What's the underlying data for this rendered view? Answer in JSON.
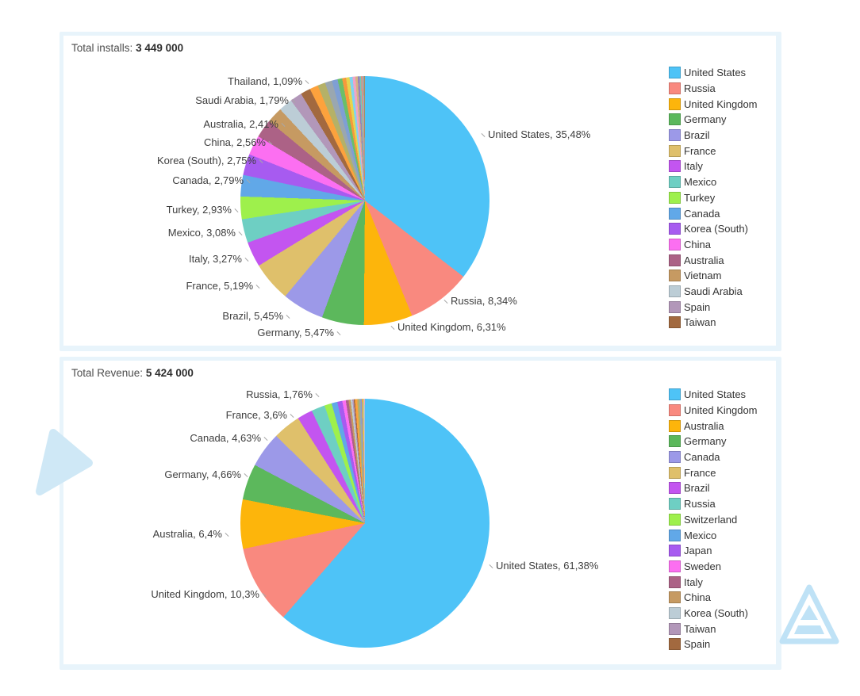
{
  "charts": [
    {
      "title_label": "Total installs:",
      "title_value": "3 449 000",
      "slice_labels": [
        "Thailand, 1,09%",
        "Saudi Arabia, 1,79%",
        "Australia, 2,41%",
        "China, 2,56%",
        "Korea (South), 2,75%",
        "Canada, 2,79%",
        "Turkey, 2,93%",
        "Mexico, 3,08%",
        "Italy, 3,27%",
        "France, 5,19%",
        "Brazil, 5,45%",
        "Germany, 5,47%",
        "United Kingdom, 6,31%",
        "Russia, 8,34%",
        "United States, 35,48%"
      ],
      "legend": [
        {
          "label": "United States",
          "color": "#4ec3f7"
        },
        {
          "label": "Russia",
          "color": "#f9897f"
        },
        {
          "label": "United Kingdom",
          "color": "#fdb50b"
        },
        {
          "label": "Germany",
          "color": "#5cb85c"
        },
        {
          "label": "Brazil",
          "color": "#9c99e8"
        },
        {
          "label": "France",
          "color": "#dfc06b"
        },
        {
          "label": "Italy",
          "color": "#c355f0"
        },
        {
          "label": "Mexico",
          "color": "#6ecfc3"
        },
        {
          "label": "Turkey",
          "color": "#9ef04c"
        },
        {
          "label": "Canada",
          "color": "#61a8e8"
        },
        {
          "label": "Korea (South)",
          "color": "#a75bf0"
        },
        {
          "label": "China",
          "color": "#fc6ff1"
        },
        {
          "label": "Australia",
          "color": "#ac6286"
        },
        {
          "label": "Vietnam",
          "color": "#c69a62"
        },
        {
          "label": "Saudi Arabia",
          "color": "#bccdd6"
        },
        {
          "label": "Spain",
          "color": "#b297b9"
        },
        {
          "label": "Taiwan",
          "color": "#a2693f"
        }
      ]
    },
    {
      "title_label": "Total Revenue:",
      "title_value": "5 424 000",
      "slice_labels": [
        "Russia, 1,76%",
        "France, 3,6%",
        "Canada, 4,63%",
        "Germany, 4,66%",
        "Australia, 6,4%",
        "United Kingdom, 10,3%",
        "United States, 61,38%"
      ],
      "legend": [
        {
          "label": "United States",
          "color": "#4ec3f7"
        },
        {
          "label": "United Kingdom",
          "color": "#f9897f"
        },
        {
          "label": "Australia",
          "color": "#fdb50b"
        },
        {
          "label": "Germany",
          "color": "#5cb85c"
        },
        {
          "label": "Canada",
          "color": "#9c99e8"
        },
        {
          "label": "France",
          "color": "#dfc06b"
        },
        {
          "label": "Brazil",
          "color": "#c355f0"
        },
        {
          "label": "Russia",
          "color": "#6ecfc3"
        },
        {
          "label": "Switzerland",
          "color": "#9ef04c"
        },
        {
          "label": "Mexico",
          "color": "#61a8e8"
        },
        {
          "label": "Japan",
          "color": "#a75bf0"
        },
        {
          "label": "Sweden",
          "color": "#fc6ff1"
        },
        {
          "label": "Italy",
          "color": "#ac6286"
        },
        {
          "label": "China",
          "color": "#c69a62"
        },
        {
          "label": "Korea (South)",
          "color": "#bccdd6"
        },
        {
          "label": "Taiwan",
          "color": "#b297b9"
        },
        {
          "label": "Spain",
          "color": "#a2693f"
        }
      ]
    }
  ],
  "chart_data": [
    {
      "type": "pie",
      "title": "Total installs: 3 449 000",
      "total_label": "Total installs:",
      "total_value": "3 449 000",
      "unit": "percent",
      "legend_position": "right",
      "start_angle_deg": 0,
      "direction": "clockwise",
      "slices": [
        {
          "name": "United States",
          "value": 35.48,
          "color": "#4ec3f7"
        },
        {
          "name": "Russia",
          "value": 8.34,
          "color": "#f9897f"
        },
        {
          "name": "United Kingdom",
          "value": 6.31,
          "color": "#fdb50b"
        },
        {
          "name": "Germany",
          "value": 5.47,
          "color": "#5cb85c"
        },
        {
          "name": "Brazil",
          "value": 5.45,
          "color": "#9c99e8"
        },
        {
          "name": "France",
          "value": 5.19,
          "color": "#dfc06b"
        },
        {
          "name": "Italy",
          "value": 3.27,
          "color": "#c355f0"
        },
        {
          "name": "Mexico",
          "value": 3.08,
          "color": "#6ecfc3"
        },
        {
          "name": "Turkey",
          "value": 2.93,
          "color": "#9ef04c"
        },
        {
          "name": "Canada",
          "value": 2.79,
          "color": "#61a8e8"
        },
        {
          "name": "Korea (South)",
          "value": 2.75,
          "color": "#a75bf0"
        },
        {
          "name": "China",
          "value": 2.56,
          "color": "#fc6ff1"
        },
        {
          "name": "Australia",
          "value": 2.41,
          "color": "#ac6286"
        },
        {
          "name": "Vietnam",
          "value": 2.05,
          "color": "#c69a62",
          "estimated": true
        },
        {
          "name": "Saudi Arabia",
          "value": 1.79,
          "color": "#bccdd6"
        },
        {
          "name": "Spain",
          "value": 1.55,
          "color": "#b297b9",
          "estimated": true
        },
        {
          "name": "Taiwan",
          "value": 1.3,
          "color": "#a2693f",
          "estimated": true
        },
        {
          "name": "Thailand",
          "value": 1.09,
          "color": "#fca23d"
        },
        {
          "name": "other",
          "value": 1.0,
          "color": "#b5b167",
          "estimated": true
        },
        {
          "name": "other",
          "value": 0.9,
          "color": "#9aa7b0",
          "estimated": true
        },
        {
          "name": "other",
          "value": 0.75,
          "color": "#7f9fd4",
          "estimated": true
        },
        {
          "name": "other",
          "value": 0.6,
          "color": "#6abf69",
          "estimated": true
        },
        {
          "name": "other",
          "value": 0.5,
          "color": "#f59a3c",
          "estimated": true
        },
        {
          "name": "other",
          "value": 0.45,
          "color": "#e8d44d",
          "estimated": true
        },
        {
          "name": "other",
          "value": 0.4,
          "color": "#7fd4f0",
          "estimated": true
        },
        {
          "name": "other",
          "value": 0.35,
          "color": "#f0a3c8",
          "estimated": true
        },
        {
          "name": "other",
          "value": 0.3,
          "color": "#d4b483",
          "estimated": true
        },
        {
          "name": "other",
          "value": 0.25,
          "color": "#9a7fb8",
          "estimated": true
        },
        {
          "name": "other",
          "value": 0.2,
          "color": "#78c8b4",
          "estimated": true
        },
        {
          "name": "other",
          "value": 0.18,
          "color": "#e88a7a",
          "estimated": true
        },
        {
          "name": "other",
          "value": 0.16,
          "color": "#8fb4c8",
          "estimated": true
        },
        {
          "name": "other",
          "value": 0.15,
          "color": "#b08a5f",
          "estimated": true
        }
      ]
    },
    {
      "type": "pie",
      "title": "Total Revenue: 5 424 000",
      "total_label": "Total Revenue:",
      "total_value": "5 424 000",
      "unit": "percent",
      "legend_position": "right",
      "start_angle_deg": 0,
      "direction": "clockwise",
      "slices": [
        {
          "name": "United States",
          "value": 61.38,
          "color": "#4ec3f7"
        },
        {
          "name": "United Kingdom",
          "value": 10.3,
          "color": "#f9897f"
        },
        {
          "name": "Australia",
          "value": 6.4,
          "color": "#fdb50b"
        },
        {
          "name": "Germany",
          "value": 4.66,
          "color": "#5cb85c"
        },
        {
          "name": "Canada",
          "value": 4.63,
          "color": "#9c99e8"
        },
        {
          "name": "France",
          "value": 3.6,
          "color": "#dfc06b"
        },
        {
          "name": "Brazil",
          "value": 2.0,
          "color": "#c355f0",
          "estimated": true
        },
        {
          "name": "Russia",
          "value": 1.76,
          "color": "#6ecfc3"
        },
        {
          "name": "Switzerland",
          "value": 0.95,
          "color": "#9ef04c",
          "estimated": true
        },
        {
          "name": "Mexico",
          "value": 0.75,
          "color": "#61a8e8",
          "estimated": true
        },
        {
          "name": "Japan",
          "value": 0.65,
          "color": "#a75bf0",
          "estimated": true
        },
        {
          "name": "Sweden",
          "value": 0.45,
          "color": "#fc6ff1",
          "estimated": true
        },
        {
          "name": "Italy",
          "value": 0.35,
          "color": "#ac6286",
          "estimated": true
        },
        {
          "name": "China",
          "value": 0.28,
          "color": "#c69a62",
          "estimated": true
        },
        {
          "name": "Korea (South)",
          "value": 0.22,
          "color": "#bccdd6",
          "estimated": true
        },
        {
          "name": "Taiwan",
          "value": 0.18,
          "color": "#b297b9",
          "estimated": true
        },
        {
          "name": "Spain",
          "value": 0.15,
          "color": "#a2693f",
          "estimated": true
        },
        {
          "name": "other",
          "value": 0.3,
          "color": "#fca23d",
          "estimated": true
        },
        {
          "name": "other",
          "value": 0.25,
          "color": "#b5b167",
          "estimated": true
        },
        {
          "name": "other",
          "value": 0.2,
          "color": "#9aa7b0",
          "estimated": true
        },
        {
          "name": "other",
          "value": 0.15,
          "color": "#7f9fd4",
          "estimated": true
        },
        {
          "name": "other",
          "value": 0.12,
          "color": "#f59a3c",
          "estimated": true
        },
        {
          "name": "other",
          "value": 0.1,
          "color": "#e8d44d",
          "estimated": true
        },
        {
          "name": "other",
          "value": 0.09,
          "color": "#7fd4f0",
          "estimated": true
        },
        {
          "name": "other",
          "value": 0.08,
          "color": "#f0a3c8",
          "estimated": true
        }
      ]
    }
  ],
  "decor": {
    "triangle_color": "#cfe8f6",
    "logo_color": "#bfe2f6"
  }
}
